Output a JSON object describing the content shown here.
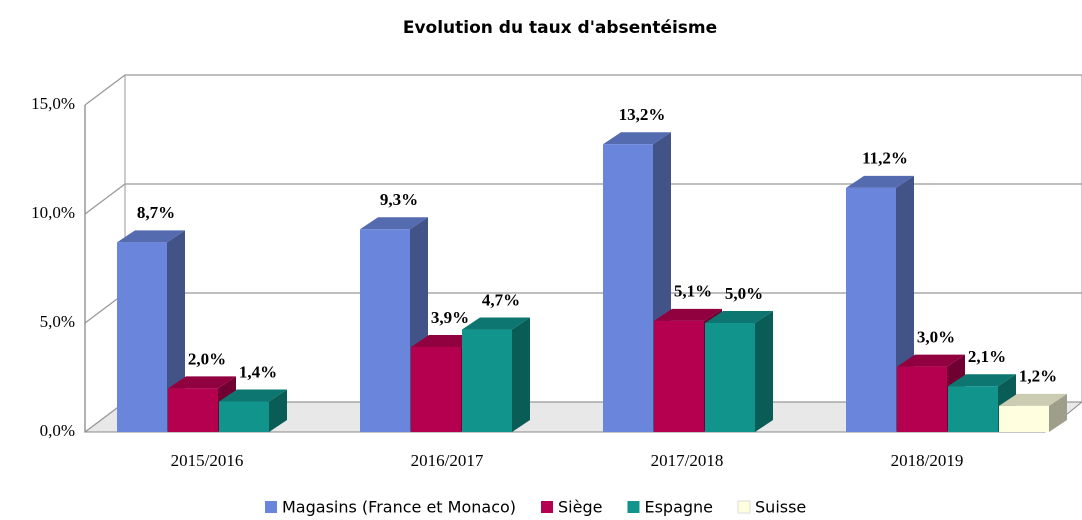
{
  "chart_data": {
    "type": "bar3d",
    "title": "Evolution du taux d'absentéisme",
    "categories": [
      "2015/2016",
      "2016/2017",
      "2017/2018",
      "2018/2019"
    ],
    "series": [
      {
        "name": "Magasins (France et Monaco)",
        "color": "#6a86dc",
        "values": [
          8.7,
          9.3,
          13.2,
          11.2
        ],
        "value_labels": [
          "8,7%",
          "9,3%",
          "13,2%",
          "11,2%"
        ]
      },
      {
        "name": "Siège",
        "color": "#b5004f",
        "values": [
          2.0,
          3.9,
          5.1,
          3.0
        ],
        "value_labels": [
          "2,0%",
          "3,9%",
          "5,1%",
          "3,0%"
        ]
      },
      {
        "name": "Espagne",
        "color": "#10948c",
        "values": [
          1.4,
          4.7,
          5.0,
          2.1
        ],
        "value_labels": [
          "1,4%",
          "4,7%",
          "5,0%",
          "2,1%"
        ]
      },
      {
        "name": "Suisse",
        "color": "#ffffe0",
        "values": [
          null,
          null,
          null,
          1.2
        ],
        "value_labels": [
          null,
          null,
          null,
          "1,2%"
        ]
      }
    ],
    "ylim": [
      0,
      15
    ],
    "yticks": [
      {
        "value": 0,
        "label": "0,0%"
      },
      {
        "value": 5,
        "label": "5,0%"
      },
      {
        "value": 10,
        "label": "10,0%"
      },
      {
        "value": 15,
        "label": "15,0%"
      }
    ],
    "grid": true,
    "legend": "bottom"
  }
}
